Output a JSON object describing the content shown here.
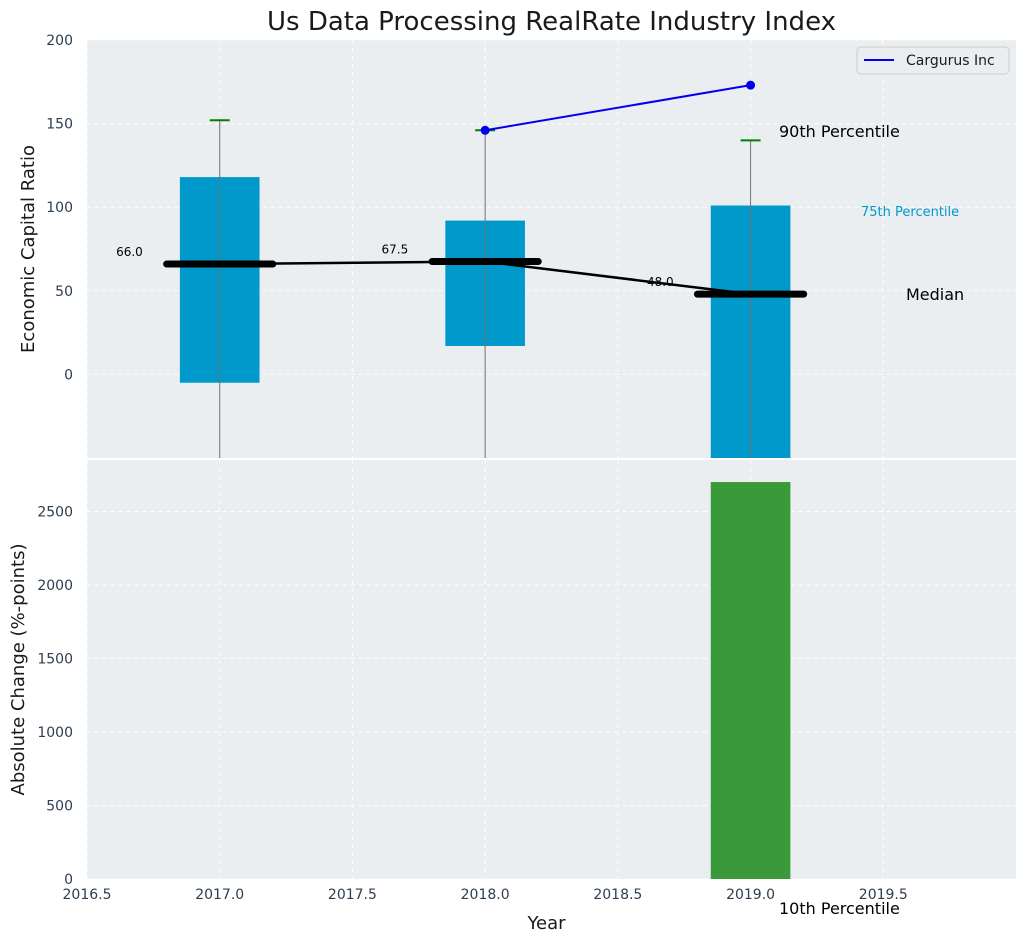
{
  "chart_data": [
    {
      "panel": "top",
      "type": "box",
      "title": "Us Data Processing RealRate Industry Index",
      "xlabel": "",
      "ylabel": "Economic Capital Ratio",
      "xlim": [
        2016.5,
        2020.0
      ],
      "ylim": [
        -50,
        200
      ],
      "yticks": [
        0,
        50,
        100,
        150,
        200
      ],
      "grid": true,
      "boxes": [
        {
          "x": 2017.0,
          "q1": -5,
          "q3": 118,
          "median": 66.0,
          "whisker_low": -50,
          "whisker_high": 152,
          "median_label": "66.0"
        },
        {
          "x": 2018.0,
          "q1": 17,
          "q3": 92,
          "median": 67.5,
          "whisker_low": -50,
          "whisker_high": 146,
          "median_label": "67.5"
        },
        {
          "x": 2019.0,
          "q1": -50,
          "q3": 101,
          "median": 48.0,
          "whisker_low": -50,
          "whisker_high": 140,
          "median_label": "48.0"
        }
      ],
      "series": [
        {
          "name": "Cargurus Inc",
          "color": "#0000ee",
          "x": [
            2018.0,
            2019.0
          ],
          "y": [
            146,
            173
          ]
        }
      ],
      "median_line_color": "#000000",
      "box_color": "#0099cc",
      "whisker_cap_color": "#008000",
      "legend": {
        "placement": "top-right",
        "entries": [
          "Cargurus Inc"
        ]
      },
      "annotations": {
        "p90": "90th Percentile",
        "p75": "75th Percentile",
        "median": "Median",
        "p10": "10th Percentile"
      }
    },
    {
      "panel": "bottom",
      "type": "bar",
      "xlabel": "Year",
      "ylabel": "Absolute Change (%-points)",
      "xlim": [
        2016.5,
        2020.0
      ],
      "ylim": [
        0,
        2850
      ],
      "yticks": [
        0,
        500,
        1000,
        1500,
        2000,
        2500
      ],
      "xticks": [
        2016.5,
        2017.0,
        2017.5,
        2018.0,
        2018.5,
        2019.0,
        2019.5
      ],
      "xtick_labels": [
        "2016.5",
        "2017.0",
        "2017.5",
        "2018.0",
        "2018.5",
        "2019.0",
        "2019.5"
      ],
      "bars": [
        {
          "x": 2019.0,
          "value": 2700,
          "color": "#3a9a3a"
        }
      ],
      "grid": true
    }
  ]
}
